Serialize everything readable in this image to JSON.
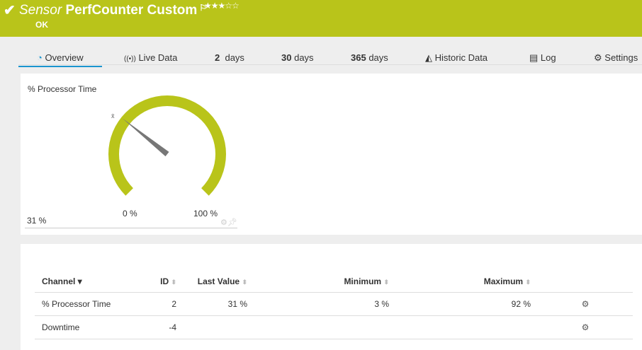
{
  "header": {
    "type": "Sensor",
    "name": "PerfCounter Custom",
    "status": "OK",
    "stars": "★★★☆☆",
    "color": "#b9c41a"
  },
  "tabs": [
    {
      "label": "Overview",
      "icon": "gauge-icon"
    },
    {
      "label": "Live Data",
      "icon": "broadcast-icon"
    },
    {
      "num": "2",
      "label": "days"
    },
    {
      "num": "30",
      "label": "days"
    },
    {
      "num": "365",
      "label": "days"
    },
    {
      "label": "Historic Data",
      "icon": "area-chart-icon"
    },
    {
      "label": "Log",
      "icon": "log-icon"
    },
    {
      "label": "Settings",
      "icon": "gear-icon"
    }
  ],
  "gauge": {
    "title": "% Processor Time",
    "value": "31 %",
    "value_num": 31,
    "min_label": "0 %",
    "max_label": "100 %",
    "avg_mark": "x̄"
  },
  "table": {
    "headers": [
      "Channel",
      "ID",
      "Last Value",
      "Minimum",
      "Maximum"
    ],
    "rows": [
      {
        "channel": "% Processor Time",
        "id": "2",
        "last": "31 %",
        "min": "3 %",
        "max": "92 %"
      },
      {
        "channel": "Downtime",
        "id": "-4",
        "last": "",
        "min": "",
        "max": ""
      }
    ]
  }
}
